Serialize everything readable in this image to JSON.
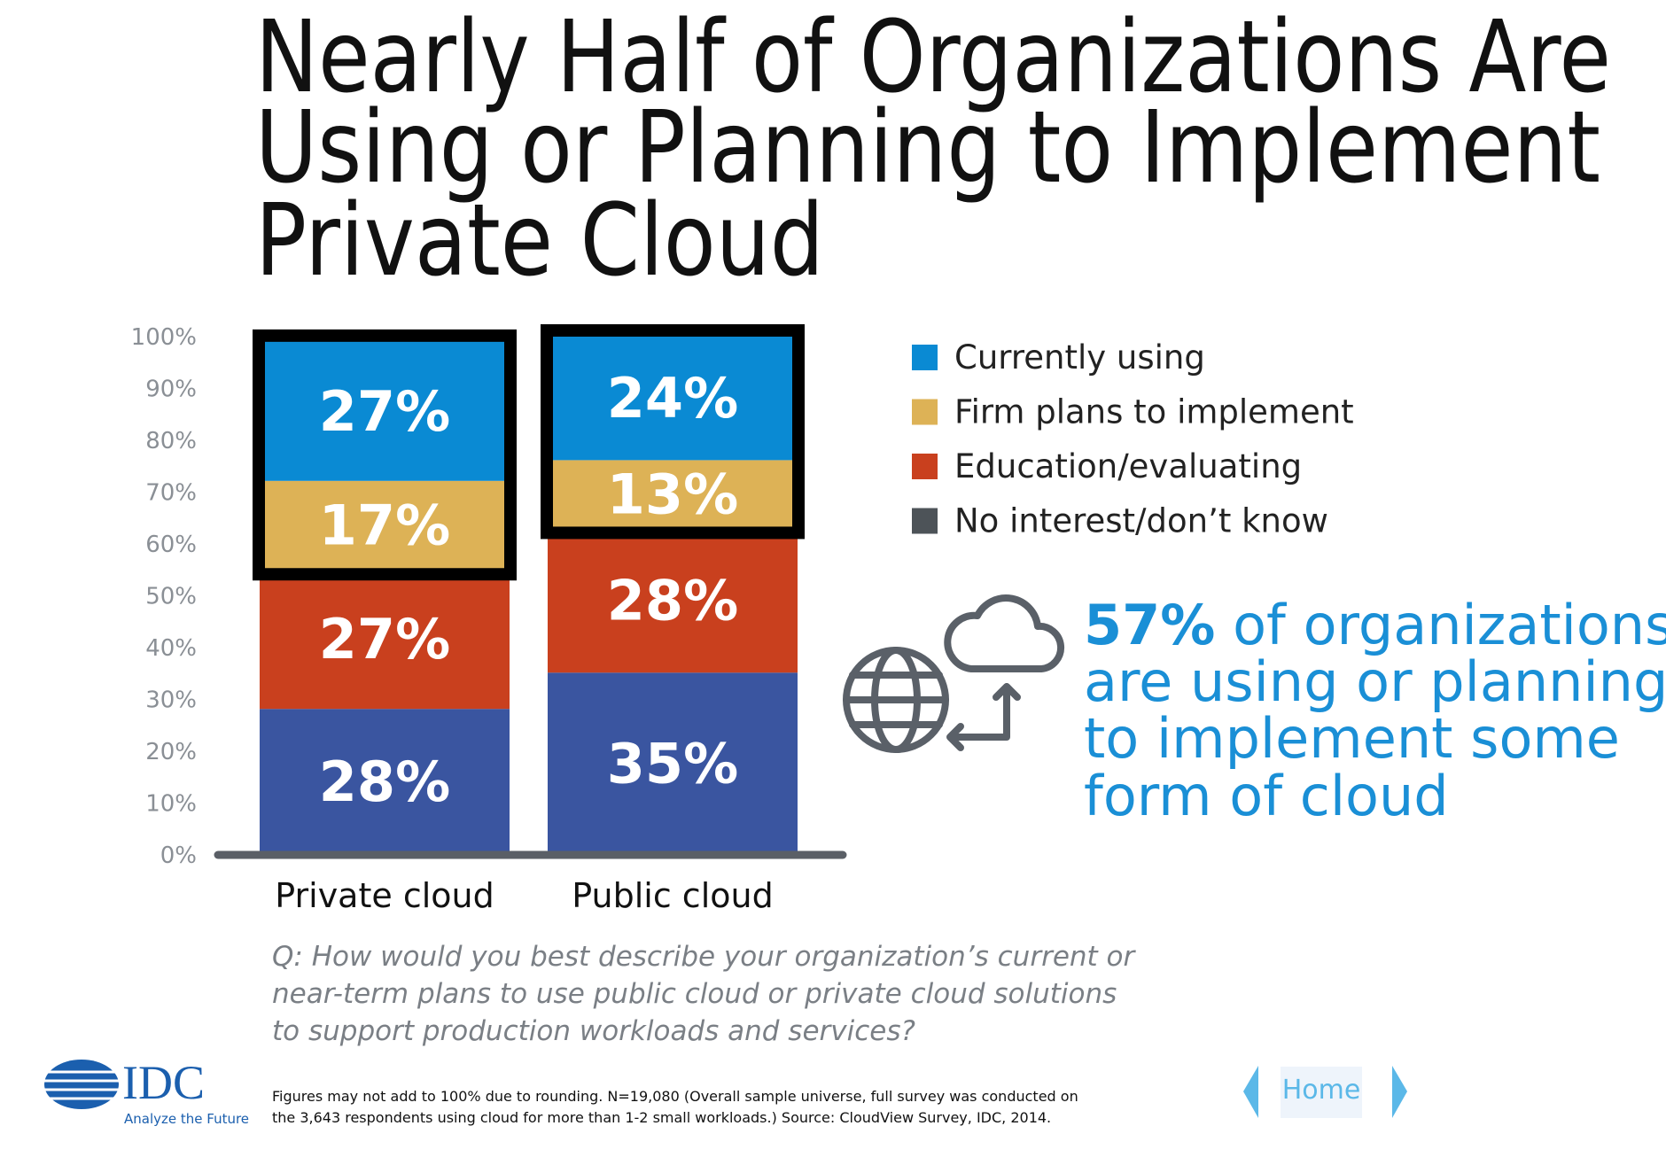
{
  "chart_data": {
    "type": "stacked_bar",
    "title": [
      "Nearly Half of Organizations Are",
      "Using or Planning to Implement",
      "Private Cloud"
    ],
    "categories": [
      "Private cloud",
      "Public cloud"
    ],
    "series": [
      {
        "name": "No interest/don’t know",
        "color": "#3a55a0",
        "legend_color": "#4d5358",
        "values": [
          28,
          35
        ],
        "value_labels": [
          "28%",
          "35%"
        ]
      },
      {
        "name": "Education/evaluating",
        "color": "#c9401e",
        "values": [
          27,
          28
        ],
        "value_labels": [
          "27%",
          "28%"
        ]
      },
      {
        "name": "Firm plans to implement",
        "color": "#ddb256",
        "values": [
          17,
          13
        ],
        "value_labels": [
          "17%",
          "13%"
        ]
      },
      {
        "name": "Currently using",
        "color": "#0a8ad3",
        "values": [
          27,
          24
        ],
        "value_labels": [
          "27%",
          "24%"
        ]
      }
    ],
    "ylim": [
      0,
      100
    ],
    "yticks": [
      {
        "value": 0,
        "label": "0%"
      },
      {
        "value": 10,
        "label": "10%"
      },
      {
        "value": 20,
        "label": "20%"
      },
      {
        "value": 30,
        "label": "30%"
      },
      {
        "value": 40,
        "label": "40%"
      },
      {
        "value": 50,
        "label": "50%"
      },
      {
        "value": 60,
        "label": "60%"
      },
      {
        "value": 70,
        "label": "70%"
      },
      {
        "value": 80,
        "label": "80%"
      },
      {
        "value": 90,
        "label": "90%"
      },
      {
        "value": 100,
        "label": "100%"
      }
    ],
    "annotation": {
      "highlight": "57%",
      "lines": [
        " of organizations",
        "are using or planning",
        "to implement some",
        "form of cloud"
      ]
    },
    "question": [
      "Q: How would you best describe your organization’s current or",
      "near-term plans to use public cloud or private cloud solutions",
      "to support production workloads and services?"
    ],
    "footnote": [
      "Figures may not add to 100% due to rounding. N=19,080 (Overall sample universe, full survey was conducted on",
      "the 3,643 respondents using cloud for more than 1-2 small workloads.) Source: CloudView Survey, IDC, 2014."
    ]
  },
  "logo": {
    "name": "IDC",
    "tagline": "Analyze the Future"
  },
  "nav": {
    "home": "Home"
  }
}
